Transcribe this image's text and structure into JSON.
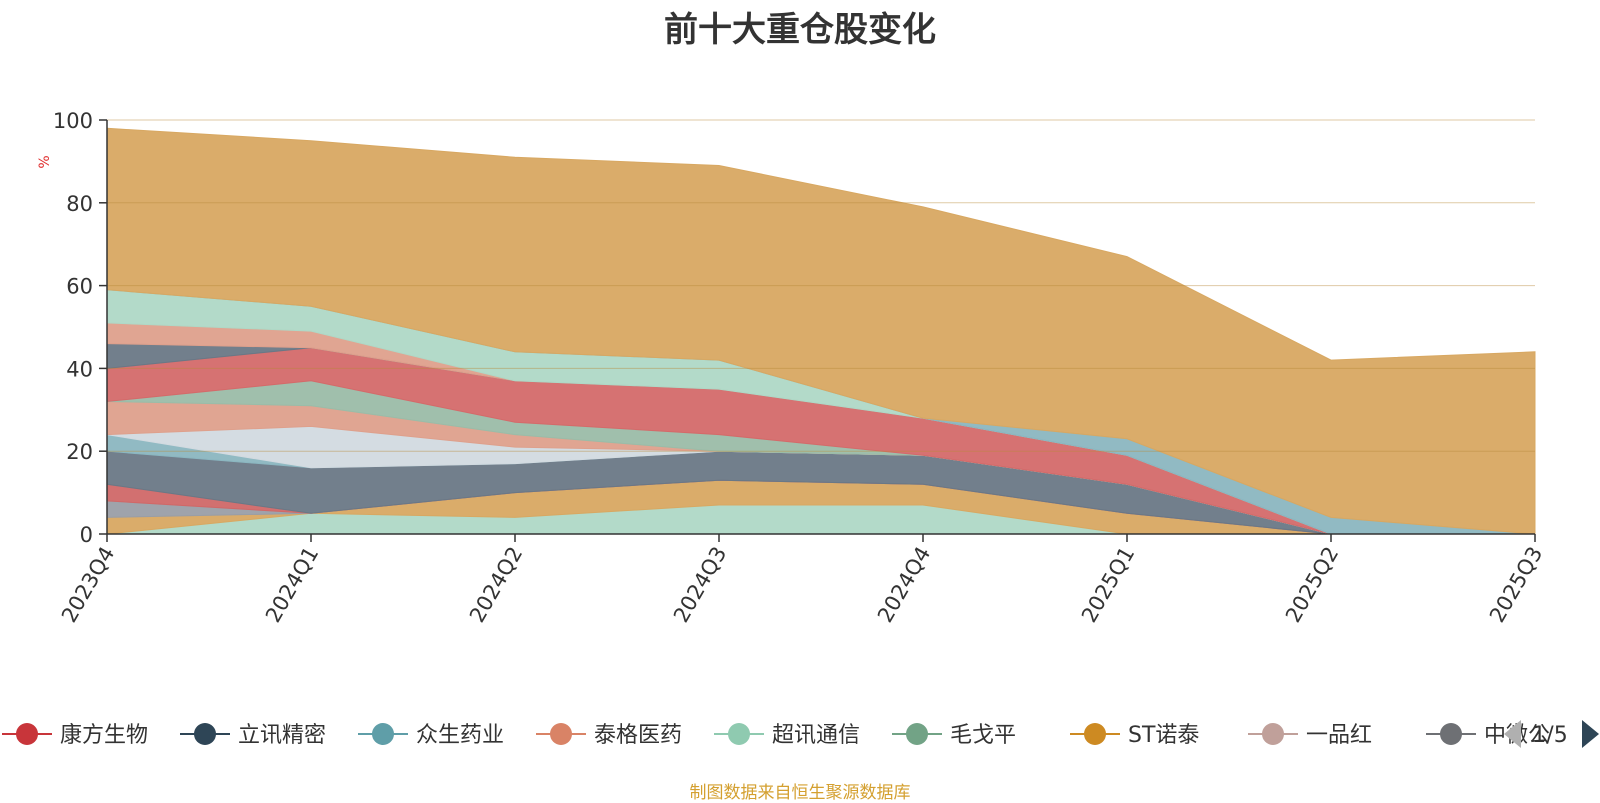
{
  "chart_data": {
    "type": "area",
    "title": "前十大重仓股变化",
    "ylabel": "%",
    "ylim": [
      0,
      100
    ],
    "yticks": [
      0,
      20,
      40,
      60,
      80,
      100
    ],
    "grid": true,
    "categories": [
      "2023Q4",
      "2024Q1",
      "2024Q2",
      "2024Q3",
      "2024Q4",
      "2025Q1",
      "2025Q2",
      "2025Q3"
    ],
    "layers": [
      {
        "name": "超讯通信",
        "color": "#afd8c6",
        "values": [
          0,
          5,
          4,
          7,
          7,
          0,
          0,
          0
        ]
      },
      {
        "name": "ST诺泰",
        "color": "#d8a862",
        "values": [
          4,
          0,
          6,
          6,
          5,
          5,
          0,
          0
        ]
      },
      {
        "name": "一品红",
        "color": "#9a9ea6",
        "values": [
          4,
          0,
          0,
          0,
          0,
          0,
          0,
          0
        ]
      },
      {
        "name": "康方生物",
        "color": "#d06868",
        "values": [
          4,
          0,
          0,
          0,
          0,
          0,
          0,
          0
        ]
      },
      {
        "name": "立讯精密",
        "color": "#6a7886",
        "values": [
          8,
          11,
          7,
          7,
          7,
          7,
          0,
          0
        ]
      },
      {
        "name": "众生药业",
        "color": "#8bb6c0",
        "values": [
          4,
          0,
          0,
          0,
          0,
          0,
          0,
          0
        ]
      },
      {
        "name": "康方生物(b)",
        "color": "#d2dae0",
        "values": [
          0,
          10,
          4,
          0,
          0,
          0,
          0,
          0
        ]
      },
      {
        "name": "泰格医药",
        "color": "#dea08c",
        "values": [
          8,
          5,
          3,
          0,
          0,
          0,
          0,
          0
        ]
      },
      {
        "name": "毛戈平",
        "color": "#9bbca8",
        "values": [
          0,
          6,
          3,
          4,
          0,
          0,
          0,
          0
        ]
      },
      {
        "name": "康方生物(c)",
        "color": "#d46a6a",
        "values": [
          8,
          8,
          10,
          11,
          9,
          7,
          0,
          0
        ]
      },
      {
        "name": "立讯精密(b)",
        "color": "#6a7886",
        "values": [
          6,
          0,
          0,
          0,
          0,
          0,
          0,
          0
        ]
      },
      {
        "name": "泰格医药(b)",
        "color": "#dea08c",
        "values": [
          5,
          4,
          0,
          0,
          0,
          0,
          0,
          0
        ]
      },
      {
        "name": "超讯通信(b)",
        "color": "#afd8c6",
        "values": [
          8,
          6,
          7,
          7,
          0,
          0,
          0,
          0
        ]
      },
      {
        "name": "众生药业(b)",
        "color": "#8bb6c0",
        "values": [
          0,
          0,
          0,
          0,
          0,
          4,
          4,
          0
        ]
      },
      {
        "name": "ST诺泰(main)",
        "color": "#d8a862",
        "values": [
          39,
          40,
          47,
          47,
          51,
          44,
          38,
          44
        ]
      }
    ]
  },
  "legend": {
    "items": [
      {
        "label": "康方生物",
        "color": "#c8353a"
      },
      {
        "label": "立讯精密",
        "color": "#2e4556"
      },
      {
        "label": "众生药业",
        "color": "#5f9ea8"
      },
      {
        "label": "泰格医药",
        "color": "#d98366"
      },
      {
        "label": "超讯通信",
        "color": "#8fcab0"
      },
      {
        "label": "毛戈平",
        "color": "#72a386"
      },
      {
        "label": "ST诺泰",
        "color": "#cd8a22"
      },
      {
        "label": "一品红",
        "color": "#c0a09a"
      },
      {
        "label": "中微公",
        "color": "#6e7074"
      }
    ],
    "page": "1/5"
  },
  "footer": "制图数据来自恒生聚源数据库"
}
